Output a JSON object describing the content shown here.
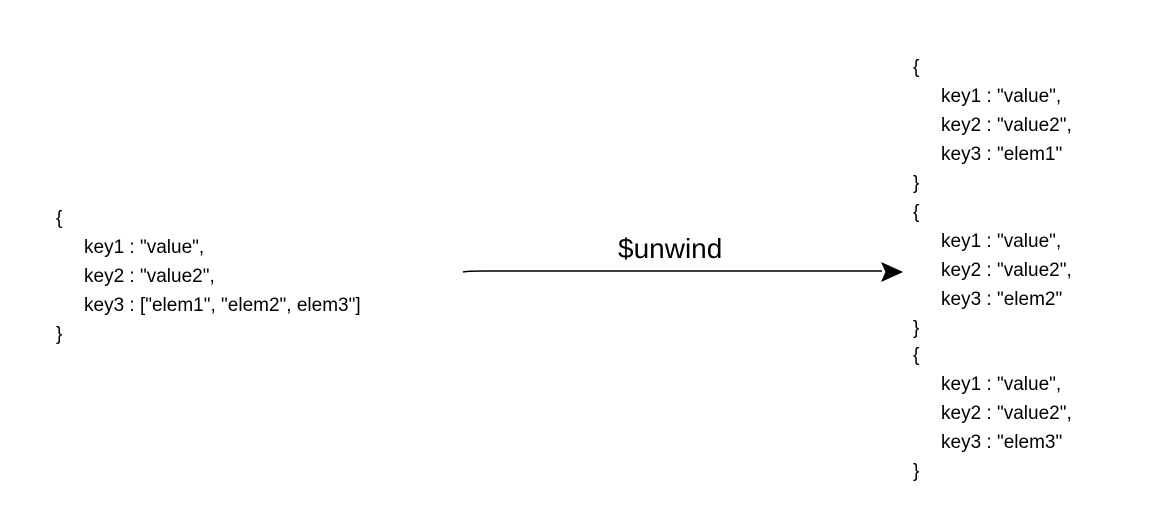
{
  "input_document": {
    "open_brace": "{",
    "lines": [
      "key1 : \"value\",",
      "key2 : \"value2\",",
      "key3 : [\"elem1\", \"elem2\", elem3\"]"
    ],
    "close_brace": "}"
  },
  "operation": {
    "label": "$unwind"
  },
  "output_documents": [
    {
      "open_brace": "{",
      "lines": [
        "key1 : \"value\",",
        "key2 : \"value2\",",
        "key3 : \"elem1\""
      ],
      "close_brace": "}"
    },
    {
      "open_brace": "{",
      "lines": [
        "key1 : \"value\",",
        "key2 : \"value2\",",
        "key3 : \"elem2\""
      ],
      "close_brace": "}"
    },
    {
      "open_brace": "{",
      "lines": [
        "key1 : \"value\",",
        "key2 : \"value2\",",
        "key3 : \"elem3\""
      ],
      "close_brace": "}"
    }
  ]
}
